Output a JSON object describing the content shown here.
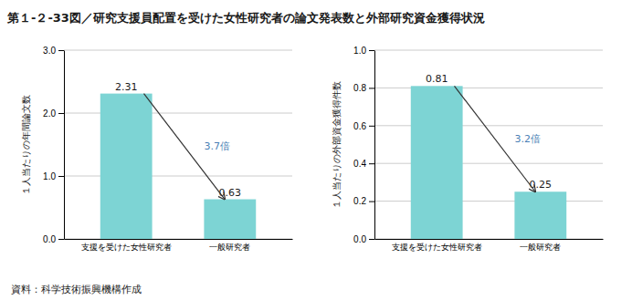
{
  "title": "第１-２-33図／研究支援員配置を受けた女性研究者の論文発表数と外部研究資金獲得状況",
  "source": "資料：科学技術振興機構作成",
  "chart_data": [
    {
      "type": "bar",
      "categories": [
        "支援を受けた女性研究者",
        "一般研究者"
      ],
      "values": [
        2.31,
        0.63
      ],
      "ylabel": "１人当たりの年間論文数",
      "ylim": [
        0,
        3.0
      ],
      "yticks": [
        {
          "value": 0,
          "label": "0.0"
        },
        {
          "value": 1,
          "label": "1.0"
        },
        {
          "value": 2,
          "label": "2.0"
        },
        {
          "value": 3,
          "label": "3.0"
        }
      ],
      "color": "#7dd4d4",
      "grid": true,
      "data_labels": true,
      "annotation": "3.7倍"
    },
    {
      "type": "bar",
      "categories": [
        "支援を受けた女性研究者",
        "一般研究者"
      ],
      "values": [
        0.81,
        0.25
      ],
      "ylabel": "１人当たりの外部資金獲得件数",
      "ylim": [
        0,
        1.0
      ],
      "yticks": [
        {
          "value": 0,
          "label": "0.0"
        },
        0.2,
        0.4,
        0.6,
        0.8,
        {
          "value": 1,
          "label": "1.0"
        }
      ],
      "color": "#7dd4d4",
      "grid": true,
      "data_labels": true,
      "annotation": "3.2倍"
    }
  ]
}
